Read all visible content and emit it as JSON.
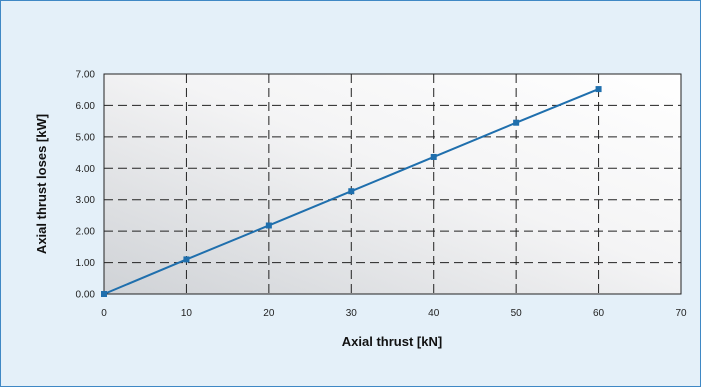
{
  "chart_data": {
    "type": "line",
    "title": "",
    "xlabel": "Axial thrust [kN]",
    "ylabel": "Axial thrust loses [kW]",
    "xlim": [
      0,
      70
    ],
    "ylim": [
      0,
      7
    ],
    "x_ticks": [
      "0",
      "10",
      "20",
      "30",
      "40",
      "50",
      "60",
      "70"
    ],
    "y_ticks": [
      "0.00",
      "1.00",
      "2.00",
      "3.00",
      "4.00",
      "5.00",
      "6.00",
      "7.00"
    ],
    "grid": true,
    "legend": "none",
    "series": [
      {
        "color": "#1f6fad",
        "marker": "square",
        "x": [
          0,
          10,
          20,
          30,
          40,
          50,
          60
        ],
        "y": [
          0.0,
          1.1,
          2.18,
          3.27,
          4.36,
          5.45,
          6.52
        ]
      }
    ]
  }
}
